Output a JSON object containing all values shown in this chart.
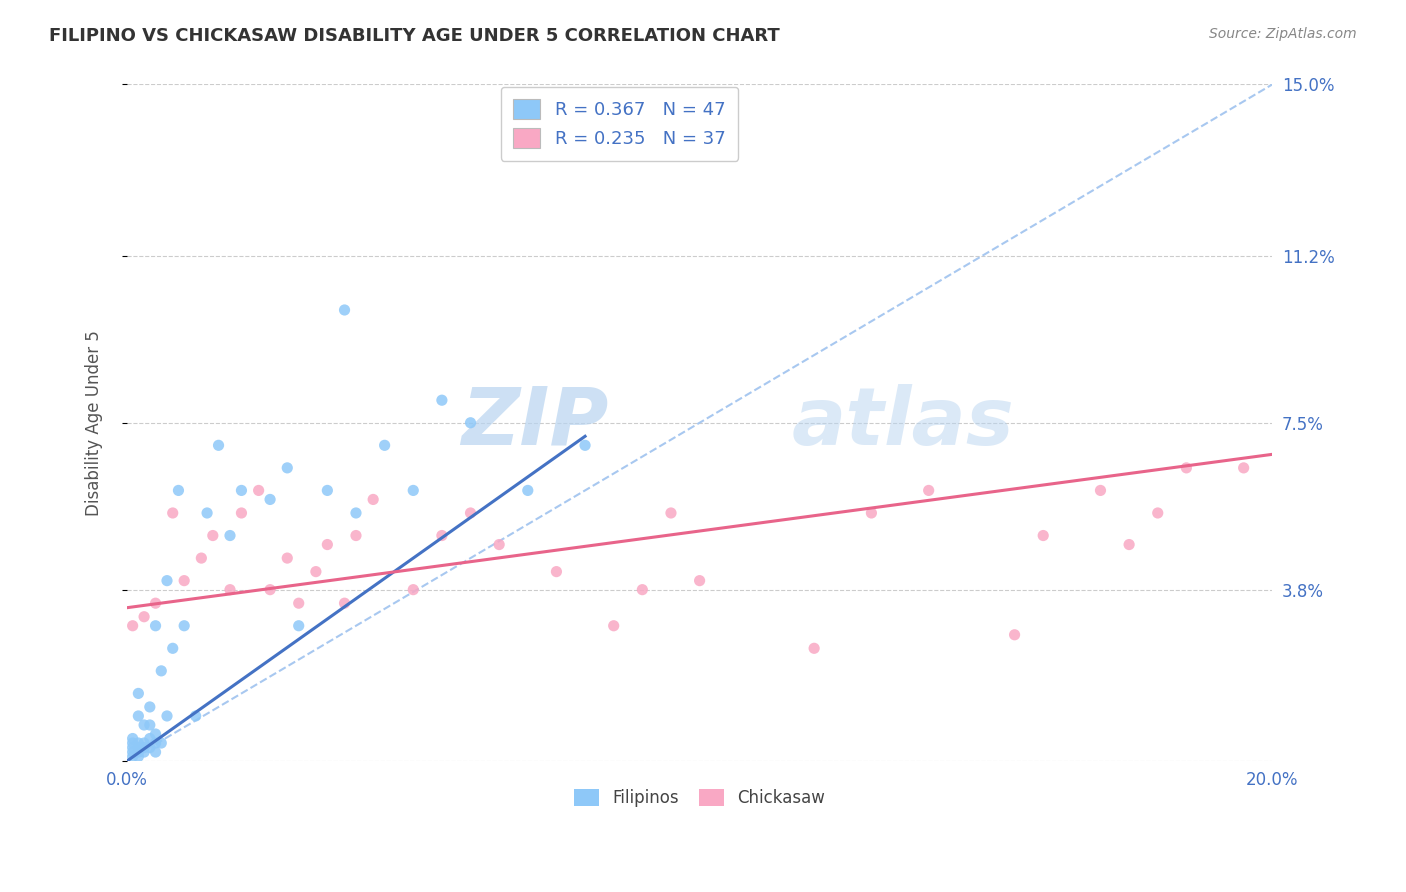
{
  "title": "FILIPINO VS CHICKASAW DISABILITY AGE UNDER 5 CORRELATION CHART",
  "source": "Source: ZipAtlas.com",
  "ylabel": "Disability Age Under 5",
  "xlim": [
    0.0,
    0.2
  ],
  "ylim": [
    0.0,
    0.15
  ],
  "yticks": [
    0.0,
    0.038,
    0.075,
    0.112,
    0.15
  ],
  "ytick_labels": [
    "",
    "3.8%",
    "7.5%",
    "11.2%",
    "15.0%"
  ],
  "xticks": [
    0.0,
    0.05,
    0.1,
    0.15,
    0.2
  ],
  "xtick_labels": [
    "0.0%",
    "",
    "",
    "",
    "20.0%"
  ],
  "watermark_zip": "ZIP",
  "watermark_atlas": "atlas",
  "filipino_R": 0.367,
  "filipino_N": 47,
  "chickasaw_R": 0.235,
  "chickasaw_N": 37,
  "filipino_color": "#8EC8F8",
  "chickasaw_color": "#F9A8C4",
  "filipino_line_color": "#4472C4",
  "chickasaw_line_color": "#E8648A",
  "dashed_line_color": "#A8C8F0",
  "background_color": "#FFFFFF",
  "grid_color": "#CCCCCC",
  "title_color": "#333333",
  "legend_text_color": "#4472C4",
  "axis_label_color": "#4472C4",
  "filipino_x": [
    0.001,
    0.001,
    0.001,
    0.001,
    0.001,
    0.002,
    0.002,
    0.002,
    0.002,
    0.002,
    0.002,
    0.003,
    0.003,
    0.003,
    0.003,
    0.004,
    0.004,
    0.004,
    0.004,
    0.005,
    0.005,
    0.005,
    0.005,
    0.006,
    0.006,
    0.007,
    0.007,
    0.008,
    0.009,
    0.01,
    0.012,
    0.014,
    0.016,
    0.018,
    0.02,
    0.025,
    0.028,
    0.03,
    0.035,
    0.038,
    0.04,
    0.045,
    0.05,
    0.055,
    0.06,
    0.07,
    0.08
  ],
  "filipino_y": [
    0.001,
    0.002,
    0.003,
    0.004,
    0.005,
    0.001,
    0.002,
    0.003,
    0.004,
    0.01,
    0.015,
    0.002,
    0.003,
    0.004,
    0.008,
    0.003,
    0.005,
    0.008,
    0.012,
    0.002,
    0.004,
    0.006,
    0.03,
    0.004,
    0.02,
    0.01,
    0.04,
    0.025,
    0.06,
    0.03,
    0.01,
    0.055,
    0.07,
    0.05,
    0.06,
    0.058,
    0.065,
    0.03,
    0.06,
    0.1,
    0.055,
    0.07,
    0.06,
    0.08,
    0.075,
    0.06,
    0.07
  ],
  "chickasaw_x": [
    0.001,
    0.003,
    0.005,
    0.008,
    0.01,
    0.013,
    0.015,
    0.018,
    0.02,
    0.023,
    0.025,
    0.028,
    0.03,
    0.033,
    0.035,
    0.038,
    0.04,
    0.043,
    0.05,
    0.055,
    0.06,
    0.065,
    0.075,
    0.085,
    0.09,
    0.095,
    0.1,
    0.12,
    0.13,
    0.14,
    0.155,
    0.16,
    0.17,
    0.175,
    0.18,
    0.185,
    0.195
  ],
  "chickasaw_y": [
    0.03,
    0.032,
    0.035,
    0.055,
    0.04,
    0.045,
    0.05,
    0.038,
    0.055,
    0.06,
    0.038,
    0.045,
    0.035,
    0.042,
    0.048,
    0.035,
    0.05,
    0.058,
    0.038,
    0.05,
    0.055,
    0.048,
    0.042,
    0.03,
    0.038,
    0.055,
    0.04,
    0.025,
    0.055,
    0.06,
    0.028,
    0.05,
    0.06,
    0.048,
    0.055,
    0.065,
    0.065
  ],
  "fil_line_x0": 0.0,
  "fil_line_y0": 0.0,
  "fil_line_x1": 0.08,
  "fil_line_y1": 0.072,
  "chick_line_x0": 0.0,
  "chick_line_y0": 0.034,
  "chick_line_x1": 0.2,
  "chick_line_y1": 0.068,
  "dash_line_x0": 0.0,
  "dash_line_y0": 0.0,
  "dash_line_x1": 0.2,
  "dash_line_y1": 0.15
}
